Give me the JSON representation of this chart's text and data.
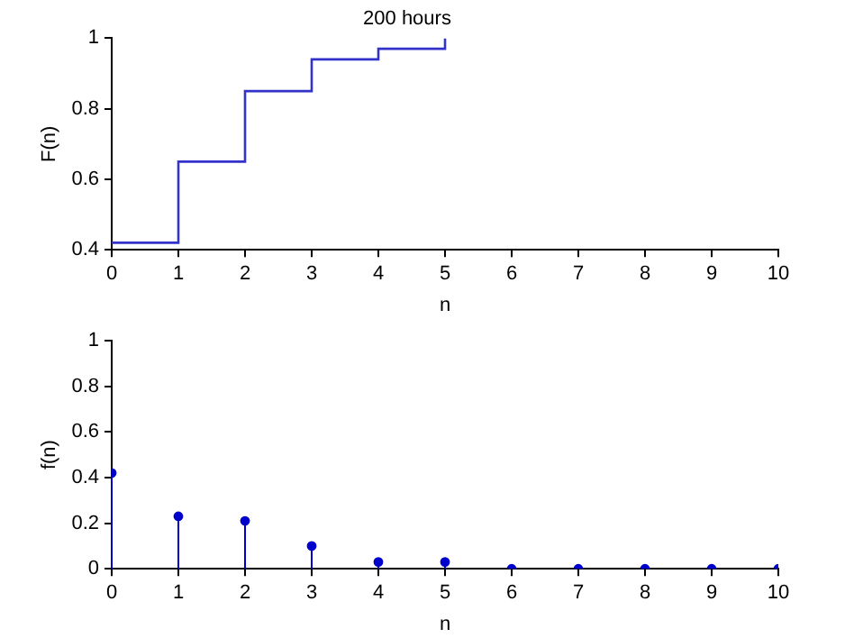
{
  "chart_data": [
    {
      "type": "step",
      "title": "200 hours",
      "xlabel": "n",
      "ylabel": "F(n)",
      "x": [
        0,
        1,
        2,
        3,
        4,
        5
      ],
      "series": [
        {
          "color": "#3333cc",
          "values": [
            0.42,
            0.65,
            0.85,
            0.94,
            0.97,
            1
          ]
        }
      ],
      "xlim": [
        0,
        10
      ],
      "xticks": [
        0,
        1,
        2,
        3,
        4,
        5,
        6,
        7,
        8,
        9,
        10
      ],
      "ylim": [
        0.4,
        1
      ],
      "yticks": [
        0.4,
        0.6,
        0.8,
        1
      ],
      "legend": false
    },
    {
      "type": "lollipop",
      "xlabel": "n",
      "ylabel": "f(n)",
      "x": [
        0,
        1,
        2,
        3,
        4,
        5,
        6,
        7,
        8,
        9,
        10
      ],
      "series": [
        {
          "color": "#0000cc",
          "values": [
            0.42,
            0.23,
            0.21,
            0.1,
            0.03,
            0.03,
            0,
            0,
            0,
            0,
            0
          ]
        }
      ],
      "xlim": [
        0,
        10
      ],
      "xticks": [
        0,
        1,
        2,
        3,
        4,
        5,
        6,
        7,
        8,
        9,
        10
      ],
      "ylim": [
        0,
        1
      ],
      "yticks": [
        0,
        0.2,
        0.4,
        0.6,
        0.8,
        1
      ],
      "marker": "circle",
      "legend": false
    }
  ]
}
